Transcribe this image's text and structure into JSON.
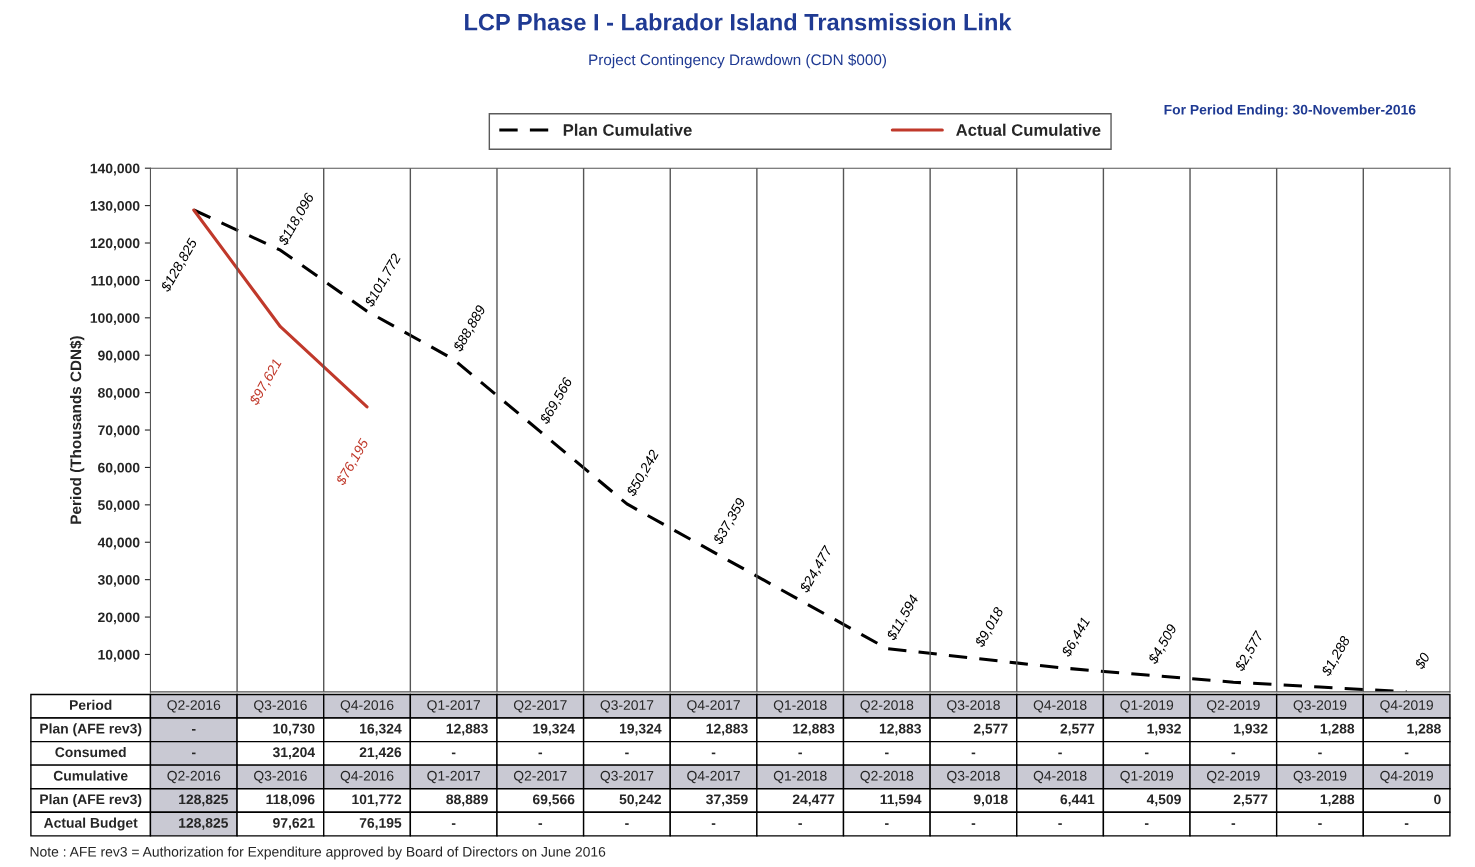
{
  "chart_data": {
    "type": "line",
    "title": "LCP Phase I - Labrador Island Transmission Link",
    "subtitle": "Project Contingency Drawdown (CDN $000)",
    "ylabel": "Period (Thousands CDN$)",
    "categories": [
      "Q2-2016",
      "Q3-2016",
      "Q4-2016",
      "Q1-2017",
      "Q2-2017",
      "Q3-2017",
      "Q4-2017",
      "Q1-2018",
      "Q2-2018",
      "Q3-2018",
      "Q4-2018",
      "Q1-2019",
      "Q2-2019",
      "Q3-2019",
      "Q4-2019"
    ],
    "series": [
      {
        "name": "Plan Cumulative",
        "color": "#000000",
        "line_style": "dashed",
        "values": [
          128825,
          118096,
          101772,
          88889,
          69566,
          50242,
          37359,
          24477,
          11594,
          9018,
          6441,
          4509,
          2577,
          1288,
          0
        ],
        "value_labels": [
          "$128,825",
          "$118,096",
          "$101,772",
          "$88,889",
          "$69,566",
          "$50,242",
          "$37,359",
          "$24,477",
          "$11,594",
          "$9,018",
          "$6,441",
          "$4,509",
          "$2,577",
          "$1,288",
          "$0"
        ]
      },
      {
        "name": "Actual Cumulative",
        "color": "#c0392b",
        "line_style": "solid",
        "values": [
          128825,
          97621,
          76195,
          null,
          null,
          null,
          null,
          null,
          null,
          null,
          null,
          null,
          null,
          null,
          null
        ],
        "value_labels": [
          null,
          "$97,621",
          "$76,195",
          null,
          null,
          null,
          null,
          null,
          null,
          null,
          null,
          null,
          null,
          null,
          null
        ]
      }
    ],
    "ylim": [
      0,
      140000
    ],
    "yticks": [
      {
        "value": 10000,
        "label": "10,000"
      },
      {
        "value": 20000,
        "label": "20,000"
      },
      {
        "value": 30000,
        "label": "30,000"
      },
      {
        "value": 40000,
        "label": "40,000"
      },
      {
        "value": 50000,
        "label": "50,000"
      },
      {
        "value": 60000,
        "label": "60,000"
      },
      {
        "value": 70000,
        "label": "70,000"
      },
      {
        "value": 80000,
        "label": "80,000"
      },
      {
        "value": 90000,
        "label": "90,000"
      },
      {
        "value": 100000,
        "label": "100,000"
      },
      {
        "value": 110000,
        "label": "110,000"
      },
      {
        "value": 120000,
        "label": "120,000"
      },
      {
        "value": 130000,
        "label": "130,000"
      },
      {
        "value": 140000,
        "label": "140,000"
      }
    ],
    "grid": "x",
    "legend": "top",
    "marker": "none",
    "annotations": [
      "For Period Ending: 30-November-2016",
      "Note : AFE rev3 = Authorization for Expenditure approved by Board of Directors on June 2016",
      "Period",
      "Plan (AFE rev3)",
      "-",
      "10,730",
      "16,324",
      "12,883",
      "19,324",
      "19,324",
      "12,883",
      "12,883",
      "12,883",
      "2,577",
      "2,577",
      "1,932",
      "1,932",
      "1,288",
      "1,288",
      "Consumed",
      "-",
      "31,204",
      "21,426",
      "-",
      "-",
      "-",
      "-",
      "-",
      "-",
      "-",
      "-",
      "-",
      "-",
      "-",
      "-",
      "Cumulative",
      "Plan (AFE rev3)",
      "128,825",
      "118,096",
      "101,772",
      "88,889",
      "69,566",
      "50,242",
      "37,359",
      "24,477",
      "11,594",
      "9,018",
      "6,441",
      "4,509",
      "2,577",
      "1,288",
      "0",
      "Actual Budget",
      "128,825",
      "97,621",
      "76,195",
      "-",
      "-",
      "-",
      "-",
      "-",
      "-",
      "-",
      "-",
      "-",
      "-",
      "-",
      "-"
    ]
  }
}
